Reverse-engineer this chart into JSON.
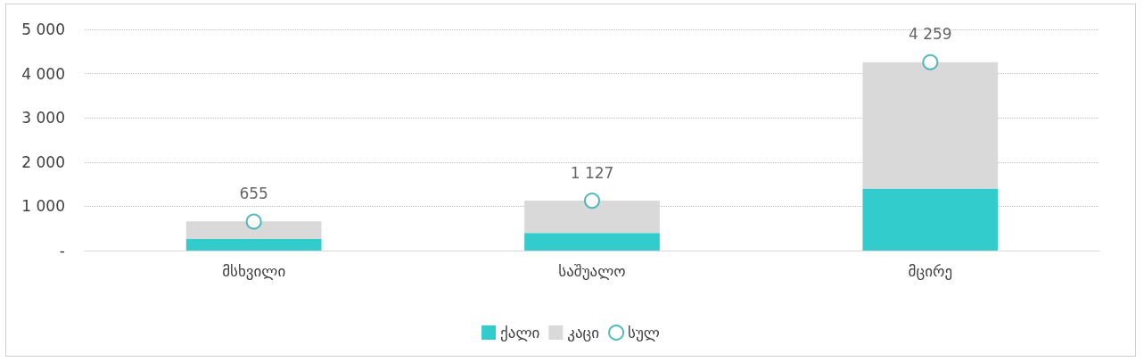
{
  "chart_data": {
    "type": "bar",
    "stacked": true,
    "categories": [
      "მსხვილი",
      "საშუალო",
      "მცირე"
    ],
    "series": [
      {
        "name": "ქალი",
        "color": "#33cccc",
        "values": [
          260,
          400,
          1400
        ]
      },
      {
        "name": "კაცი",
        "color": "#d9d9d9",
        "values": [
          400,
          730,
          2860
        ]
      },
      {
        "name": "სულ",
        "type": "scatter",
        "color": "#2aa9a9",
        "x": [
          "მსხვილი",
          "საშუალო",
          "მცირე"
        ],
        "values": [
          655,
          1127,
          4259
        ],
        "value_labels": [
          "655",
          "1 127",
          "4 259"
        ]
      }
    ],
    "ylim": [
      0,
      5000
    ],
    "yticks": [
      {
        "value": 0,
        "label": "-"
      },
      {
        "value": 1000,
        "label": "1 000"
      },
      {
        "value": 2000,
        "label": "2 000"
      },
      {
        "value": 3000,
        "label": "3 000"
      },
      {
        "value": 4000,
        "label": "4 000"
      },
      {
        "value": 5000,
        "label": "5 000"
      }
    ],
    "grid": "y",
    "legend": "bottom",
    "marker": "circle"
  }
}
